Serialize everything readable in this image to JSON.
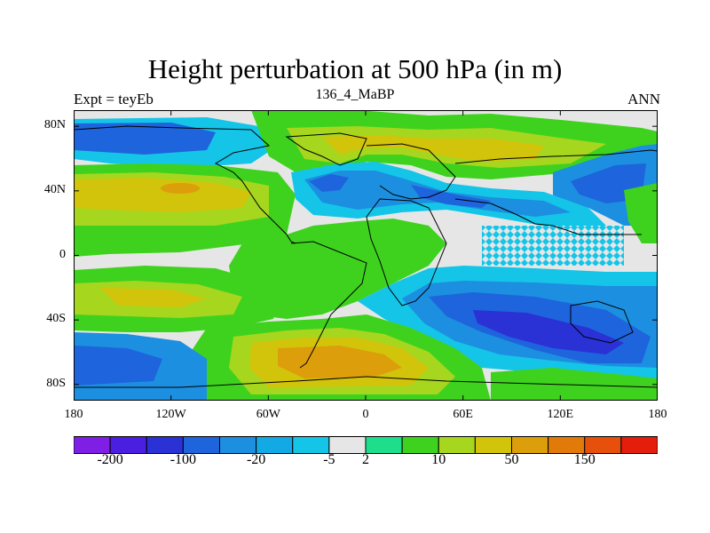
{
  "title": "Height perturbation at 500 hPa (in m)",
  "left_string": "Expt = teyEb",
  "center_string": "136_4_MaBP",
  "right_string": "ANN",
  "y_ticks": [
    {
      "label": "80N",
      "lat": 80
    },
    {
      "label": "40N",
      "lat": 40
    },
    {
      "label": "0",
      "lat": 0
    },
    {
      "label": "40S",
      "lat": -40
    },
    {
      "label": "80S",
      "lat": -80
    }
  ],
  "x_ticks": [
    {
      "label": "180",
      "lon": -180
    },
    {
      "label": "120W",
      "lon": -120
    },
    {
      "label": "60W",
      "lon": -60
    },
    {
      "label": "0",
      "lon": 0
    },
    {
      "label": "60E",
      "lon": 60
    },
    {
      "label": "120E",
      "lon": 120
    },
    {
      "label": "180",
      "lon": 180
    }
  ],
  "colorbar": {
    "colors": [
      "#7f1fe6",
      "#4a1fe0",
      "#2a32d6",
      "#1e64dc",
      "#1c8fe0",
      "#12a9e4",
      "#14c5e8",
      "#e6e6e6",
      "#1ede8c",
      "#3ed21e",
      "#a6d61e",
      "#d2c40a",
      "#dc9e0a",
      "#e27a0a",
      "#e6500a",
      "#e41e0a"
    ],
    "labels": [
      {
        "text": "-200",
        "after_index": 0
      },
      {
        "text": "-100",
        "after_index": 2
      },
      {
        "text": "-20",
        "after_index": 4
      },
      {
        "text": "-5",
        "after_index": 6
      },
      {
        "text": "2",
        "after_index": 7
      },
      {
        "text": "10",
        "after_index": 9
      },
      {
        "text": "50",
        "after_index": 11
      },
      {
        "text": "150",
        "after_index": 13
      }
    ]
  },
  "field_colors": {
    "neg_strong": "#1e64dc",
    "neg_mid": "#1c8fe0",
    "neg_weak": "#14c5e8",
    "neutral": "#e6e6e6",
    "pos_weak": "#3ed21e",
    "pos_mid": "#a6d61e",
    "pos_strong": "#d2c40a",
    "pos_max": "#dc9e0a"
  }
}
